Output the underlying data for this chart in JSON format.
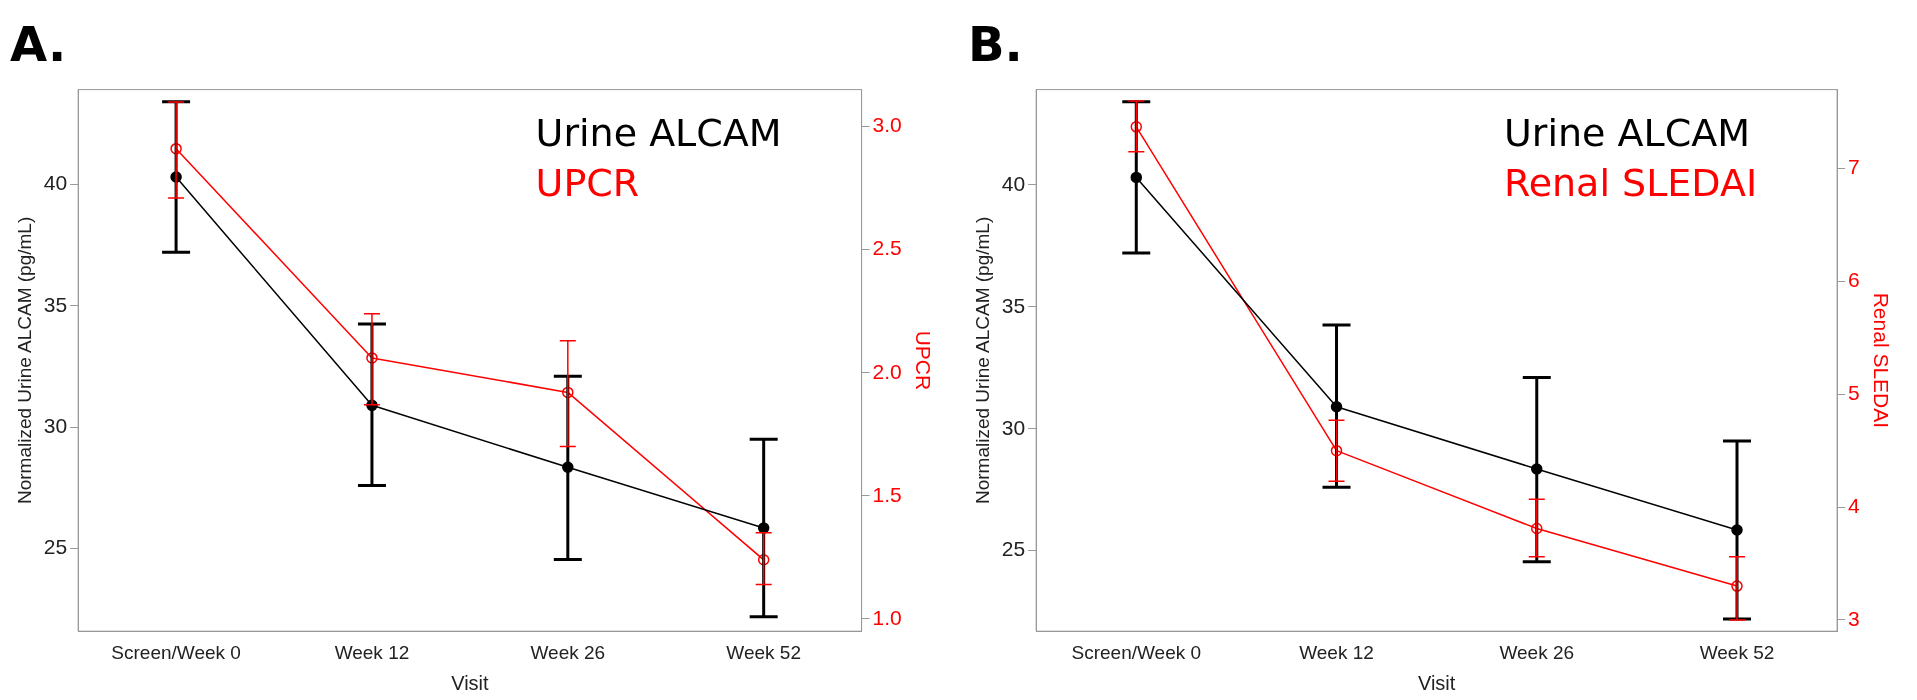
{
  "chart_data": [
    {
      "type": "line",
      "title": "A.",
      "xlabel": "Visit",
      "ylabel": "Normalized Urine ALCAM (pg/mL)",
      "y2label": "UPCR",
      "categories": [
        "Screen/Week 0",
        "Week 12",
        "Week 26",
        "Week 52"
      ],
      "series": [
        {
          "name": "Urine ALCAM",
          "color": "#000000",
          "values": [
            40.3,
            30.9,
            28.35,
            25.85
          ],
          "errors": [
            [
              37.2,
              43.4
            ],
            [
              27.6,
              34.25
            ],
            [
              24.55,
              32.1
            ],
            [
              22.2,
              29.5
            ]
          ]
        },
        {
          "name": "UPCR",
          "color": "#ff0000",
          "axis": "y2",
          "values": [
            2.91,
            2.06,
            1.92,
            1.24
          ],
          "errors": [
            [
              2.71,
              3.1
            ],
            [
              1.87,
              2.24
            ],
            [
              1.7,
              2.13
            ],
            [
              1.14,
              1.35
            ]
          ]
        }
      ],
      "ylim": [
        21.6,
        43.9
      ],
      "yticks": [
        25,
        30,
        35,
        40
      ],
      "y2lim": [
        0.95,
        3.15
      ],
      "y2ticks": [
        {
          "value": 1,
          "label": "1.0"
        },
        {
          "value": 1.5,
          "label": "1.5"
        },
        {
          "value": 2,
          "label": "2.0"
        },
        {
          "value": 2.5,
          "label": "2.5"
        },
        {
          "value": 3,
          "label": "3.0"
        }
      ],
      "grid": false,
      "legend": "top right",
      "marker": "circle",
      "line_style": "solid"
    },
    {
      "type": "line",
      "title": "B.",
      "xlabel": "Visit",
      "ylabel": "Normalized Urine ALCAM (pg/mL)",
      "y2label": "Renal SLEDAI",
      "categories": [
        "Screen/Week 0",
        "Week 12",
        "Week 26",
        "Week 52"
      ],
      "series": [
        {
          "name": "Urine ALCAM",
          "color": "#000000",
          "values": [
            40.3,
            30.9,
            28.35,
            25.85
          ],
          "errors": [
            [
              37.2,
              43.4
            ],
            [
              27.6,
              34.25
            ],
            [
              24.55,
              32.1
            ],
            [
              22.2,
              29.5
            ]
          ]
        },
        {
          "name": "Renal SLEDAI",
          "color": "#ff0000",
          "axis": "y2",
          "values": [
            7.37,
            4.5,
            3.81,
            3.3
          ],
          "errors": [
            [
              7.15,
              7.6
            ],
            [
              4.23,
              4.77
            ],
            [
              3.56,
              4.07
            ],
            [
              3.0,
              3.56
            ]
          ]
        }
      ],
      "ylim": [
        21.7,
        43.9
      ],
      "yticks": [
        25,
        30,
        35,
        40
      ],
      "y2lim": [
        2.9,
        7.7
      ],
      "y2ticks": [
        3,
        4,
        5,
        6,
        7
      ],
      "grid": false,
      "legend": "top right",
      "marker": "circle",
      "line_style": "solid"
    }
  ]
}
